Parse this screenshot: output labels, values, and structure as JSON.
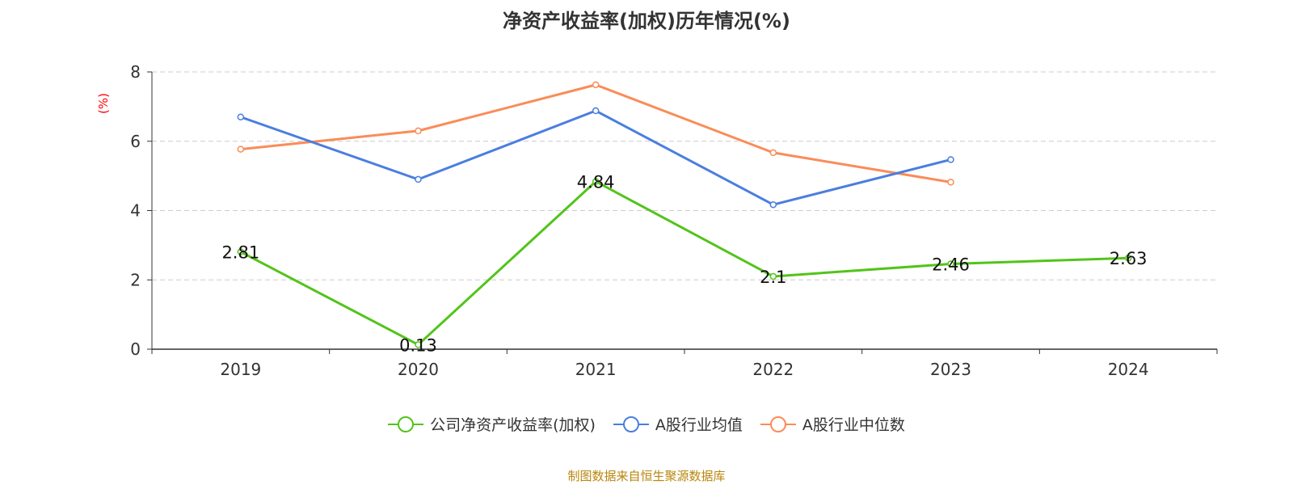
{
  "title": "净资产收益率(加权)历年情况(%)",
  "source": "制图数据来自恒生聚源数据库",
  "chart_data": {
    "type": "line",
    "title": "净资产收益率(加权)历年情况(%)",
    "ylabel": "(%)",
    "categories": [
      "2019",
      "2020",
      "2021",
      "2022",
      "2023",
      "2024"
    ],
    "ylim": [
      0,
      8
    ],
    "yticks": [
      0,
      2,
      4,
      6,
      8
    ],
    "grid": true,
    "legend_position": "bottom",
    "series": [
      {
        "name": "公司净资产收益率(加权)",
        "color": "#52c41a",
        "values": [
          2.81,
          0.13,
          4.84,
          2.1,
          2.46,
          2.63
        ],
        "labels": [
          "2.81",
          "0.13",
          "4.84",
          "2.1",
          "2.46",
          "2.63"
        ]
      },
      {
        "name": "A股行业均值",
        "color": "#4a7ee0",
        "values": [
          6.7,
          4.9,
          6.88,
          4.17,
          5.47,
          null
        ]
      },
      {
        "name": "A股行业中位数",
        "color": "#fa8c58",
        "values": [
          5.77,
          6.3,
          7.63,
          5.67,
          4.82,
          null
        ]
      }
    ]
  }
}
